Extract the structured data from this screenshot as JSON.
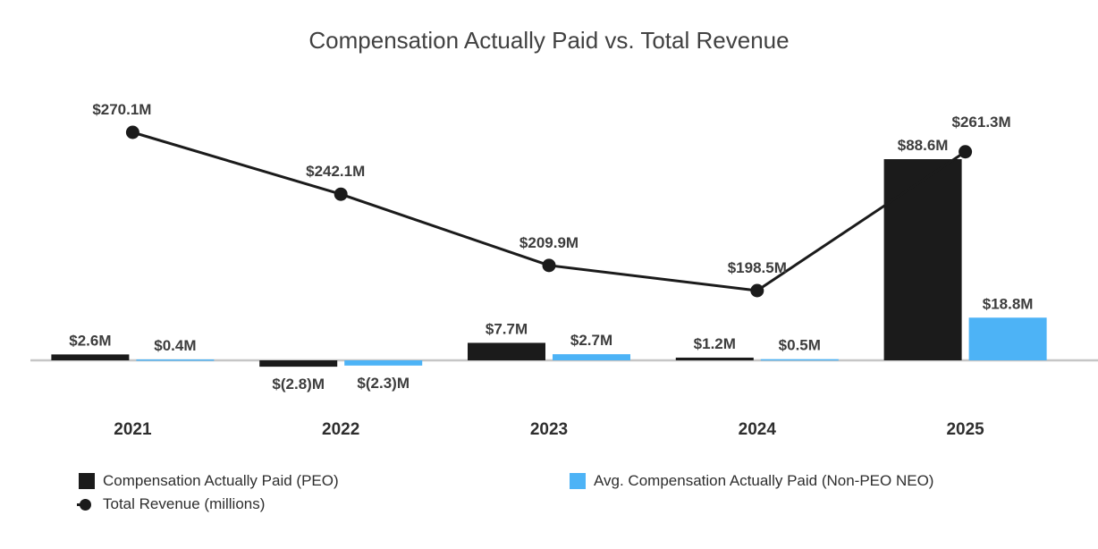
{
  "page": {
    "background": "#ffffff"
  },
  "chart_data": {
    "type": "bar",
    "subtype": "bar-line-combo",
    "title": "Compensation Actually Paid vs. Total Revenue",
    "categories": [
      "2021",
      "2022",
      "2023",
      "2024",
      "2025"
    ],
    "series": [
      {
        "name": "Compensation Actually Paid (PEO)",
        "type": "bar",
        "color": "#1b1b1b",
        "values": [
          2.6,
          -2.8,
          7.7,
          1.2,
          88.6
        ],
        "labels": [
          "$2.6M",
          "$(2.8)M",
          "$7.7M",
          "$1.2M",
          "$88.6M"
        ]
      },
      {
        "name": "Avg. Compensation Actually Paid (Non-PEO NEO)",
        "type": "bar",
        "color": "#4db3f6",
        "values": [
          0.4,
          -2.3,
          2.7,
          0.5,
          18.8
        ],
        "labels": [
          "$0.4M",
          "$(2.3)M",
          "$2.7M",
          "$0.5M",
          "$18.8M"
        ]
      },
      {
        "name": "Total Revenue (millions)",
        "type": "line",
        "color": "#1b1b1b",
        "values": [
          270.1,
          242.1,
          209.9,
          198.5,
          261.3
        ],
        "labels": [
          "$270.1M",
          "$242.1M",
          "$209.9M",
          "$198.5M",
          "$261.3M"
        ]
      }
    ],
    "xlabel": "",
    "ylabel": "",
    "grid": false,
    "y_axis_visible": false,
    "x_axis_line_visible": true,
    "legend_position": "bottom",
    "baseline_color": "#c6c6c6",
    "label_color": "#3d3d3d",
    "title_color": "#414141",
    "units": "millions USD"
  }
}
